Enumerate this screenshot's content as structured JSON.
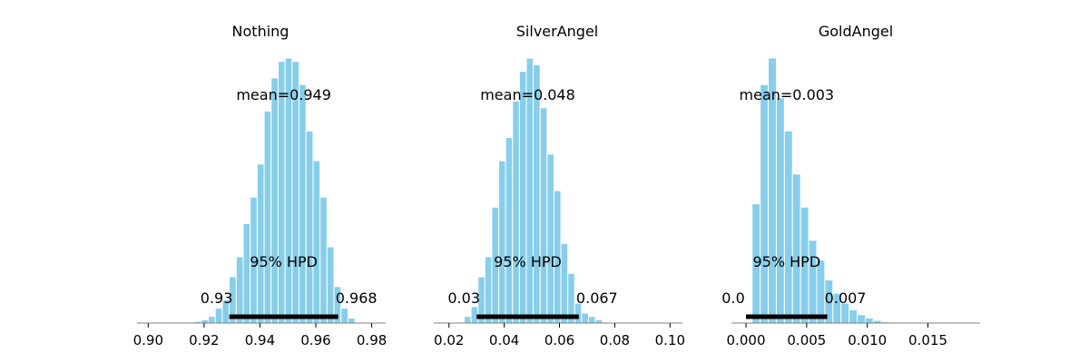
{
  "chart_data": [
    {
      "type": "bar",
      "title": "Nothing",
      "xlim": [
        0.896,
        0.985
      ],
      "xticks": [
        0.9,
        0.92,
        0.94,
        0.96,
        0.98
      ],
      "tick_labels": [
        "0.90",
        "0.92",
        "0.94",
        "0.96",
        "0.98"
      ],
      "bin_start": 0.9165,
      "bin_width": 0.0025,
      "counts": [
        0.5,
        1,
        2,
        4.5,
        7,
        14,
        20,
        30,
        38,
        48,
        64,
        74,
        79,
        80,
        79,
        72,
        58,
        49,
        38,
        23,
        11,
        4.5,
        1.5
      ],
      "mean_label": "mean=0.949",
      "hpd_label": "95% HPD",
      "hpd": [
        0.929,
        0.968
      ],
      "hpd_low_label": "0.93",
      "hpd_high_label": "0.968",
      "bar_color": "#87ceeb"
    },
    {
      "type": "bar",
      "title": "SilverAngel",
      "xlim": [
        0.0145,
        0.1045
      ],
      "xticks": [
        0.02,
        0.04,
        0.06,
        0.08,
        0.1
      ],
      "tick_labels": [
        "0.02",
        "0.04",
        "0.06",
        "0.08",
        "0.10"
      ],
      "bin_start": 0.0255,
      "bin_width": 0.0025,
      "counts": [
        2,
        5,
        14,
        20,
        35,
        49,
        56,
        67,
        76,
        80,
        78,
        65,
        51,
        40,
        24,
        15,
        6,
        3,
        2,
        1
      ],
      "mean_label": "mean=0.048",
      "hpd_label": "95% HPD",
      "hpd": [
        0.03,
        0.067
      ],
      "hpd_low_label": "0.03",
      "hpd_high_label": "0.067",
      "bar_color": "#87ceeb"
    },
    {
      "type": "bar",
      "title": "GoldAngel",
      "xlim": [
        -0.0012,
        0.0193
      ],
      "xticks": [
        0.0,
        0.005,
        0.01,
        0.015
      ],
      "tick_labels": [
        "0.000",
        "0.005",
        "0.010",
        "0.015"
      ],
      "bin_start": 0.0005,
      "bin_width": 0.0006667,
      "counts": [
        36,
        72,
        80,
        68,
        58,
        45,
        35,
        25,
        19,
        13,
        9,
        6,
        4,
        2.5,
        1.5,
        0.8,
        0.4,
        0.2,
        0.1
      ],
      "mean_label": "mean=0.003",
      "hpd_label": "95% HPD",
      "hpd": [
        0.0,
        0.0067
      ],
      "hpd_low_label": "0.0",
      "hpd_high_label": "0.007",
      "bar_color": "#87ceeb"
    }
  ]
}
